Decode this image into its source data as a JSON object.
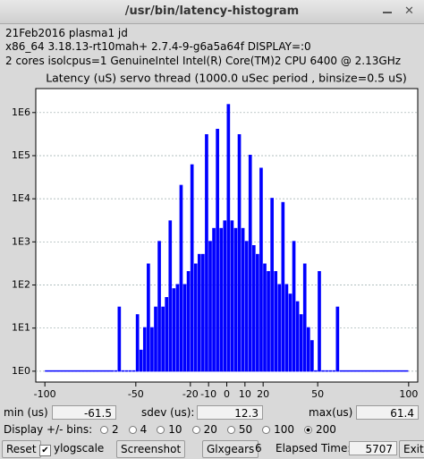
{
  "window": {
    "title": "/usr/bin/latency-histogram"
  },
  "info_lines": [
    "21Feb2016 plasma1 jd",
    "x86_64  3.18.13-rt10mah+  2.7.4-9-g6a5a64f  DISPLAY=:0",
    "2 cores  isolcpus=1  GenuineIntel  Intel(R) Core(TM)2 CPU 6400 @ 2.13GHz"
  ],
  "chart_data": {
    "type": "histogram",
    "title": "Latency (uS) servo thread (1000.0 uSec period , binsize=0.5 uS)",
    "bins": [
      -100,
      -62,
      -60,
      -58,
      -56,
      -54,
      -52,
      -50,
      -48,
      -46,
      -44,
      -42,
      -40,
      -38,
      -36,
      -34,
      -32,
      -30,
      -28,
      -26,
      -24,
      -22,
      -20,
      -18,
      -16,
      -14,
      -12,
      -10,
      -8,
      -6,
      -4,
      -2,
      0,
      2,
      4,
      6,
      8,
      10,
      12,
      14,
      16,
      18,
      20,
      22,
      24,
      26,
      28,
      30,
      32,
      34,
      36,
      38,
      40,
      42,
      44,
      46,
      48,
      50,
      52,
      54,
      56,
      58,
      60,
      62,
      100
    ],
    "values": [
      1,
      1,
      30,
      1,
      1,
      1,
      1,
      20,
      3,
      10,
      300,
      10,
      30,
      1000,
      30,
      50,
      3000,
      80,
      100,
      20000,
      100,
      200,
      60000,
      300,
      500,
      500,
      300000,
      1000,
      2000,
      400000,
      2000,
      3000,
      1500000,
      3000,
      2000,
      300000,
      2000,
      1000,
      100000,
      800,
      500,
      50000,
      300,
      200,
      10000,
      200,
      100,
      8000,
      100,
      60,
      1000,
      40,
      20,
      300,
      10,
      5,
      1,
      200,
      1,
      1,
      1,
      1,
      30,
      1
    ],
    "color": "#0000ff",
    "xlim": [
      -105,
      105
    ],
    "xticks": [
      -100,
      -50,
      -20,
      -10,
      0,
      10,
      20,
      50,
      100
    ],
    "ylim": [
      0.56,
      3600000
    ],
    "yticks": [
      {
        "value": 1,
        "label": "1E0"
      },
      {
        "value": 10,
        "label": "1E1"
      },
      {
        "value": 100,
        "label": "1E2"
      },
      {
        "value": 1000,
        "label": "1E3"
      },
      {
        "value": 10000,
        "label": "1E4"
      },
      {
        "value": 100000,
        "label": "1E5"
      },
      {
        "value": 1000000,
        "label": "1E6"
      }
    ],
    "log_scale": true,
    "grid": true
  },
  "controls": {
    "min_label": "min (us)",
    "min_value": "-61.5",
    "sdev_label": "sdev (us):",
    "sdev_value": "12.3",
    "max_label": "max(us)",
    "max_value": "61.4",
    "bins_label": "Display +/- bins:",
    "bins_options": [
      "2",
      "4",
      "10",
      "20",
      "50",
      "100",
      "200"
    ],
    "bins_selected": 6,
    "reset": "Reset",
    "ylogscale": "ylogscale",
    "screenshot": "Screenshot",
    "glxgears": "Glxgears",
    "glxgears_value": "6",
    "elapsed_label": "Elapsed Time:",
    "elapsed_value": "5707",
    "exit": "Exit"
  }
}
